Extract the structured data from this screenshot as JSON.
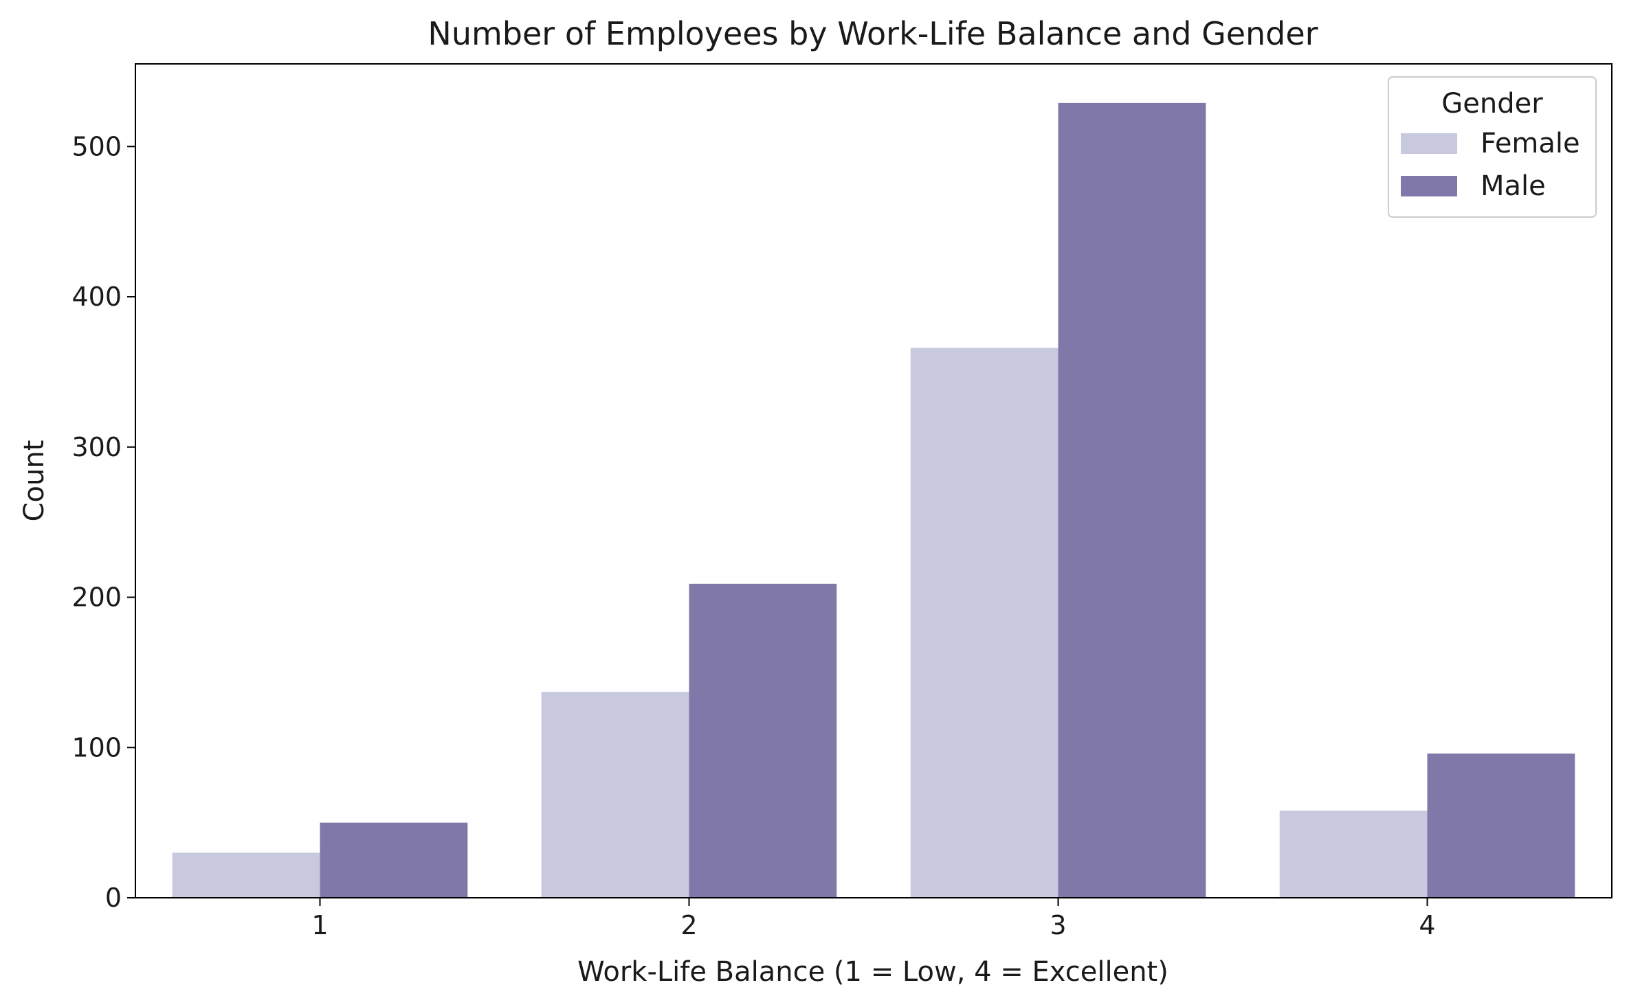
{
  "chart_data": {
    "type": "bar",
    "title": "Number of Employees by Work-Life Balance and Gender",
    "xlabel": "Work-Life Balance (1 = Low, 4 = Excellent)",
    "ylabel": "Count",
    "categories": [
      "1",
      "2",
      "3",
      "4"
    ],
    "series": [
      {
        "name": "Female",
        "color": "#c8c9de",
        "values": [
          30,
          137,
          366,
          58
        ]
      },
      {
        "name": "Male",
        "color": "#8078a9",
        "values": [
          50,
          209,
          529,
          96
        ]
      }
    ],
    "ylim": [
      0,
      555
    ],
    "yticks": [
      0,
      100,
      200,
      300,
      400,
      500
    ],
    "grid": false,
    "legend": {
      "title": "Gender",
      "placement": "top-right"
    }
  }
}
